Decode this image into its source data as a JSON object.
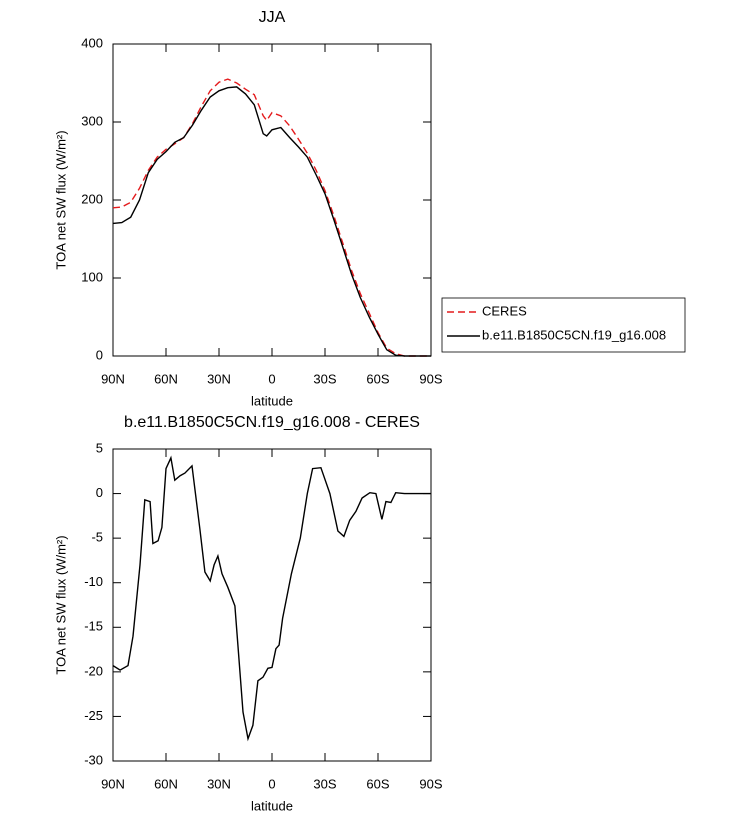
{
  "chart_data": [
    {
      "type": "line",
      "title": "JJA",
      "xlabel": "latitude",
      "ylabel": "TOA net SW flux (W/m²)",
      "x": [
        90,
        85,
        80,
        75,
        70,
        65,
        60,
        55,
        50,
        45,
        40,
        35,
        30,
        25,
        20,
        15,
        10,
        5,
        3,
        0,
        -5,
        -10,
        -15,
        -20,
        -25,
        -30,
        -35,
        -40,
        -45,
        -50,
        -55,
        -60,
        -65,
        -70,
        -75,
        -80,
        -85,
        -90
      ],
      "series": [
        {
          "name": "CERES",
          "color": "#e41a1c",
          "dashed": true,
          "values": [
            190,
            191,
            197,
            215,
            238,
            255,
            265,
            272,
            280,
            298,
            320,
            340,
            351,
            355,
            350,
            342,
            335,
            308,
            302,
            312,
            308,
            295,
            278,
            260,
            238,
            212,
            180,
            145,
            110,
            80,
            55,
            30,
            10,
            3,
            0,
            0,
            0,
            0
          ]
        },
        {
          "name": "b.e11.B1850C5CN.f19_g16.008",
          "color": "#000000",
          "dashed": false,
          "values": [
            170,
            171,
            178,
            200,
            235,
            252,
            262,
            274,
            280,
            296,
            315,
            332,
            340,
            344,
            345,
            336,
            322,
            285,
            282,
            290,
            293,
            280,
            268,
            255,
            232,
            208,
            175,
            140,
            105,
            75,
            50,
            28,
            8,
            1,
            0,
            0,
            0,
            0
          ]
        }
      ],
      "xlim": [
        90,
        -90
      ],
      "xticks": [
        {
          "value": 90,
          "label": "90N"
        },
        {
          "value": 60,
          "label": "60N"
        },
        {
          "value": 30,
          "label": "30N"
        },
        0,
        {
          "value": -30,
          "label": "30S"
        },
        {
          "value": -60,
          "label": "60S"
        },
        {
          "value": -90,
          "label": "90S"
        }
      ],
      "ylim": [
        0,
        400
      ],
      "yticks": [
        0,
        100,
        200,
        300,
        400
      ],
      "grid": false,
      "legend": "outside-right"
    },
    {
      "type": "line",
      "title": "b.e11.B1850C5CN.f19_g16.008 - CERES",
      "xlabel": "latitude",
      "ylabel": "TOA net SW flux (W/m²)",
      "x": [
        90,
        86,
        81.5,
        78.7,
        74.7,
        72,
        69,
        67.4,
        64.5,
        62.3,
        60,
        57.2,
        55,
        52,
        49.3,
        45.3,
        40.8,
        38,
        35,
        32.8,
        30.6,
        28.3,
        25,
        21,
        19.3,
        16.4,
        13.6,
        10.8,
        8,
        5.1,
        2.3,
        0,
        -2.2,
        -4,
        -6,
        -11,
        -16,
        -20,
        -23,
        -27.7,
        -32.8,
        -37.3,
        -40.7,
        -44,
        -47.5,
        -51,
        -55.4,
        -58.8,
        -62.2,
        -64.5,
        -67.3,
        -70,
        -75,
        -80,
        -85,
        -90
      ],
      "values": [
        -19.3,
        -19.8,
        -19.3,
        -16,
        -8,
        -0.7,
        -0.9,
        -5.6,
        -5.3,
        -3.8,
        2.8,
        4.0,
        1.5,
        2.0,
        2.3,
        3.1,
        -4,
        -8.8,
        -9.8,
        -8,
        -7,
        -9,
        -10.5,
        -12.6,
        -17,
        -24.5,
        -27.5,
        -26,
        -21,
        -20.6,
        -19.6,
        -19.5,
        -17.4,
        -17,
        -14,
        -9,
        -5,
        0,
        2.8,
        2.9,
        0,
        -4.2,
        -4.8,
        -3,
        -2,
        -0.5,
        0.1,
        0,
        -2.9,
        -0.9,
        -1.0,
        0.1,
        0,
        0,
        0,
        0
      ],
      "color": "#000000",
      "xlim": [
        90,
        -90
      ],
      "xticks": [
        {
          "value": 90,
          "label": "90N"
        },
        {
          "value": 60,
          "label": "60N"
        },
        {
          "value": 30,
          "label": "30N"
        },
        0,
        {
          "value": -30,
          "label": "30S"
        },
        {
          "value": -60,
          "label": "60S"
        },
        {
          "value": -90,
          "label": "90S"
        }
      ],
      "ylim": [
        -30,
        5
      ],
      "yticks": [
        -30,
        -25,
        -20,
        -15,
        -10,
        -5,
        0,
        5
      ],
      "grid": false
    }
  ]
}
